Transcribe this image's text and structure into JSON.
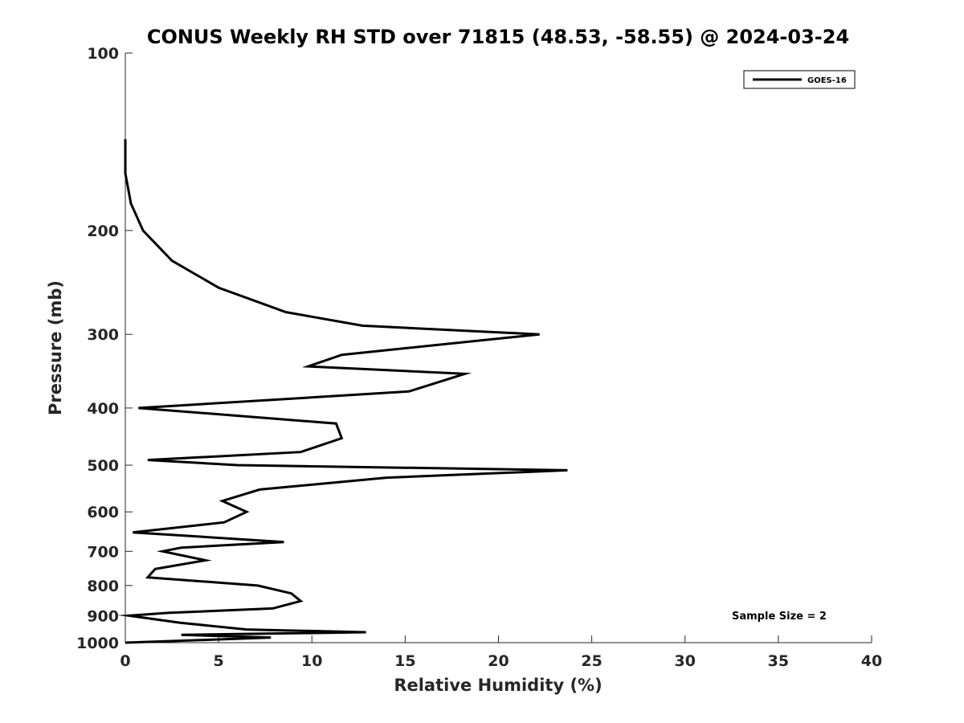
{
  "chart_data": {
    "type": "line",
    "title": "CONUS Weekly RH STD over 71815 (48.53, -58.55) @ 2024-03-24",
    "xlabel": "Relative Humidity (%)",
    "ylabel": "Pressure (mb)",
    "xlim": [
      0,
      40
    ],
    "ylim": [
      100,
      1000
    ],
    "yscale": "log",
    "yreversed": true,
    "grid": false,
    "x_ticks": [
      0,
      5,
      10,
      15,
      20,
      25,
      30,
      35,
      40
    ],
    "x_tick_labels": [
      "0",
      "5",
      "10",
      "15",
      "20",
      "25",
      "30",
      "35",
      "40"
    ],
    "y_ticks": [
      100,
      200,
      300,
      400,
      500,
      600,
      700,
      800,
      900,
      1000
    ],
    "y_tick_labels": [
      "100",
      "200",
      "300",
      "400",
      "500",
      "600",
      "700",
      "800",
      "900",
      "1000"
    ],
    "legend": {
      "position": "top-right",
      "entries": [
        "GOES-16"
      ]
    },
    "annotation": "Sample Size = 2",
    "series": [
      {
        "name": "GOES-16",
        "color": "#000000",
        "points": [
          [
            0.0,
            140
          ],
          [
            0.0,
            160
          ],
          [
            0.3,
            180
          ],
          [
            0.95,
            200
          ],
          [
            2.5,
            225
          ],
          [
            5.0,
            250
          ],
          [
            8.6,
            275
          ],
          [
            12.7,
            290
          ],
          [
            22.2,
            300
          ],
          [
            11.6,
            325
          ],
          [
            9.8,
            340
          ],
          [
            18.2,
            350
          ],
          [
            15.2,
            375
          ],
          [
            0.7,
            400
          ],
          [
            11.3,
            425
          ],
          [
            11.6,
            450
          ],
          [
            9.4,
            475
          ],
          [
            1.2,
            490
          ],
          [
            6.0,
            500
          ],
          [
            23.7,
            510
          ],
          [
            14.0,
            525
          ],
          [
            7.2,
            550
          ],
          [
            5.2,
            575
          ],
          [
            6.5,
            600
          ],
          [
            5.3,
            625
          ],
          [
            0.4,
            650
          ],
          [
            8.5,
            675
          ],
          [
            3.0,
            690
          ],
          [
            2.0,
            700
          ],
          [
            4.3,
            725
          ],
          [
            1.6,
            750
          ],
          [
            1.2,
            775
          ],
          [
            7.1,
            800
          ],
          [
            8.9,
            825
          ],
          [
            9.4,
            850
          ],
          [
            7.9,
            875
          ],
          [
            2.3,
            890
          ],
          [
            0.2,
            900
          ],
          [
            2.9,
            925
          ],
          [
            6.5,
            950
          ],
          [
            12.9,
            960
          ],
          [
            3.0,
            970
          ],
          [
            7.8,
            980
          ],
          [
            4.0,
            990
          ],
          [
            0.0,
            1000
          ]
        ]
      }
    ]
  }
}
